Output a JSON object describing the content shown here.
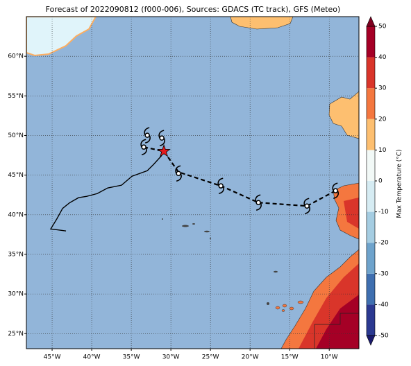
{
  "chart_data": {
    "type": "map",
    "title": "Forecast of 2022090812 (f000-006), Sources: GDACS (TC track), GFS (Meteo)",
    "xlim": [
      -48.25,
      -6.25
    ],
    "ylim": [
      23.1,
      65
    ],
    "xticks": [
      {
        "value": -45,
        "label": "45°W"
      },
      {
        "value": -40,
        "label": "40°W"
      },
      {
        "value": -35,
        "label": "35°W"
      },
      {
        "value": -30,
        "label": "30°W"
      },
      {
        "value": -25,
        "label": "25°W"
      },
      {
        "value": -20,
        "label": "20°W"
      },
      {
        "value": -15,
        "label": "15°W"
      },
      {
        "value": -10,
        "label": "10°W"
      }
    ],
    "yticks": [
      {
        "value": 25,
        "label": "25°N"
      },
      {
        "value": 30,
        "label": "30°N"
      },
      {
        "value": 35,
        "label": "35°N"
      },
      {
        "value": 40,
        "label": "40°N"
      },
      {
        "value": 45,
        "label": "45°N"
      },
      {
        "value": 50,
        "label": "50°N"
      },
      {
        "value": 55,
        "label": "55°N"
      },
      {
        "value": 60,
        "label": "60°N"
      }
    ],
    "grid": true,
    "best_track": {
      "color": "#000000",
      "lon": [
        -43.25,
        -44.56,
        -45.18,
        -44.39,
        -43.68,
        -42.81,
        -41.67,
        -40.61,
        -39.3,
        -37.98,
        -36.23,
        -34.91,
        -32.98,
        -32.19,
        -31.23,
        -30.88
      ],
      "lat": [
        37.95,
        38.13,
        38.2,
        39.5,
        40.8,
        41.5,
        42.15,
        42.33,
        42.67,
        43.38,
        43.73,
        44.86,
        45.56,
        46.35,
        47.4,
        48.01
      ]
    },
    "forecast_track": {
      "color": "#000000",
      "lon": [
        -33.42,
        -30.88,
        -29.04,
        -23.68,
        -18.95,
        -12.81,
        -9.21
      ],
      "lat": [
        48.54,
        48.01,
        45.39,
        43.64,
        41.54,
        41.1,
        43.03
      ]
    },
    "storm_markers": {
      "lon": [
        -33.42,
        -32.98,
        -31.14,
        -29.04,
        -23.68,
        -18.95,
        -12.81,
        -9.21
      ],
      "lat": [
        48.54,
        50.03,
        49.68,
        45.21,
        43.64,
        41.54,
        41.1,
        43.03
      ]
    },
    "current_position": {
      "lon": -30.88,
      "lat": 48.01,
      "color": "#e41a1c"
    },
    "colorbar": {
      "label": "Max Temperature (°C)",
      "lim": [
        -50,
        50
      ],
      "ticks": [
        -50,
        -40,
        -30,
        -20,
        -10,
        0,
        10,
        20,
        30,
        40,
        50
      ],
      "colors": [
        "#2b3991",
        "#3f6fb0",
        "#6ea3cc",
        "#a5cde2",
        "#d6ecf3",
        "#f2f9f7",
        "#fdbf70",
        "#f4773f",
        "#d9352a",
        "#a50026"
      ],
      "under": "#1a1a6e",
      "over": "#7f0020"
    }
  }
}
